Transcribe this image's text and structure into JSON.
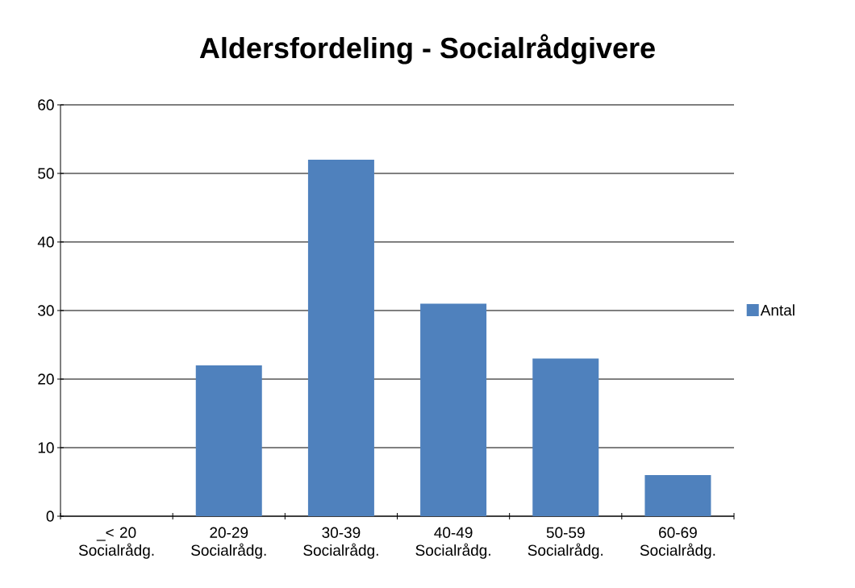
{
  "chart_data": {
    "type": "bar",
    "title": "Aldersfordeling - Socialrådgivere",
    "categories": [
      "_< 20 Socialrådg.",
      "20-29 Socialrådg.",
      "30-39 Socialrådg.",
      "40-49 Socialrådg.",
      "50-59 Socialrådg.",
      "60-69 Socialrådg."
    ],
    "series": [
      {
        "name": "Antal",
        "color": "#4f81bd",
        "values": [
          null,
          22,
          52,
          31,
          23,
          6
        ]
      }
    ],
    "ylim": [
      0,
      60
    ],
    "yticks": [
      0,
      10,
      20,
      30,
      40,
      50,
      60
    ],
    "grid": "y",
    "legend": "right"
  }
}
